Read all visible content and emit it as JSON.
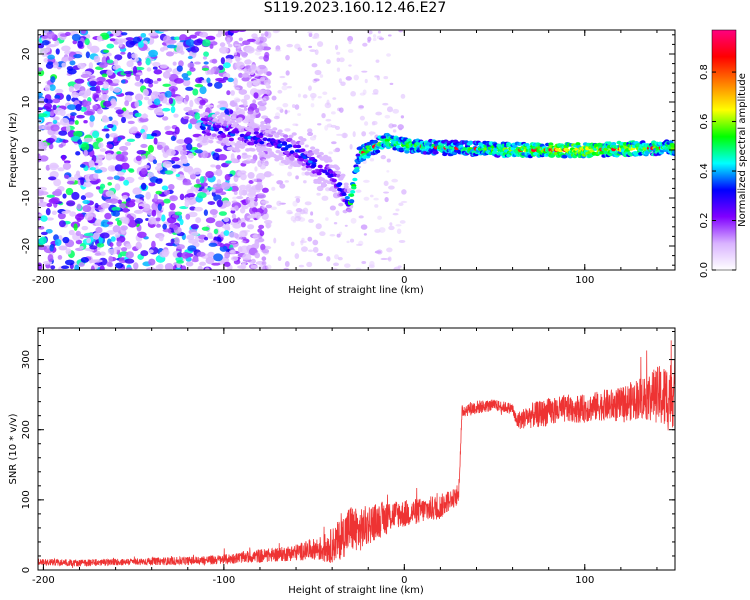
{
  "title": "S119.2023.160.12.46.E27",
  "chart_data": [
    {
      "type": "heatmap",
      "xlabel": "Height of straight line (km)",
      "ylabel": "Frequency (Hz)",
      "xlim": [
        -203,
        150
      ],
      "ylim": [
        -25,
        25
      ],
      "xticks": [
        -200,
        -100,
        0,
        100
      ],
      "yticks": [
        -20,
        -10,
        0,
        10,
        20
      ],
      "grid": false,
      "colorbar": {
        "label": "Normalized spectral amplitude",
        "range": [
          0,
          0.97
        ],
        "ticks": [
          0.0,
          0.2,
          0.4,
          0.6,
          0.8
        ],
        "colormap": [
          "#ffffff",
          "#d9b3ff",
          "#8000ff",
          "#0000ff",
          "#00ffff",
          "#00ff00",
          "#ffff00",
          "#ff8000",
          "#ff0000",
          "#ff0080"
        ]
      },
      "ridge": {
        "description_points_x": [
          -110,
          -90,
          -75,
          -60,
          -50,
          -40,
          -35,
          -30,
          -25,
          -10,
          0,
          20,
          60,
          100,
          150
        ],
        "description_points_y": [
          5,
          3,
          2,
          0,
          -3,
          -5,
          -8,
          -11,
          -1,
          2,
          1,
          0.5,
          0,
          0,
          0.5
        ],
        "flat_amplitude": [
          0.5,
          0.45,
          0.55,
          0.6,
          0.5
        ],
        "flat_x": [
          0,
          30,
          60,
          100,
          150
        ]
      },
      "noise_region": {
        "x_from": -203,
        "x_to": -95,
        "y_from": -25,
        "y_to": 25
      }
    },
    {
      "type": "line",
      "xlabel": "Height of straight line (km)",
      "ylabel": "SNR (10 * v/v)",
      "xlim": [
        -203,
        150
      ],
      "ylim": [
        0,
        345
      ],
      "xticks": [
        -200,
        -100,
        0,
        100
      ],
      "yticks": [
        0,
        100,
        200,
        300
      ],
      "grid": false,
      "series": [
        {
          "color": "#ee3333",
          "x": [
            -203,
            -180,
            -150,
            -120,
            -100,
            -90,
            -80,
            -70,
            -60,
            -50,
            -45,
            -40,
            -35,
            -30,
            -25,
            -20,
            -15,
            -10,
            -5,
            0,
            10,
            20,
            25,
            30,
            32,
            33,
            40,
            50,
            60,
            62,
            70,
            80,
            90,
            100,
            110,
            120,
            130,
            140,
            145,
            150
          ],
          "y": [
            12,
            10,
            12,
            13,
            15,
            18,
            20,
            22,
            25,
            30,
            30,
            35,
            45,
            60,
            55,
            65,
            70,
            75,
            80,
            80,
            85,
            90,
            100,
            105,
            225,
            228,
            232,
            235,
            230,
            212,
            220,
            225,
            230,
            230,
            235,
            235,
            245,
            250,
            245,
            255
          ],
          "noise_amplitude": [
            5,
            5,
            5,
            6,
            7,
            8,
            10,
            10,
            12,
            15,
            20,
            25,
            30,
            35,
            30,
            30,
            25,
            25,
            20,
            20,
            18,
            18,
            15,
            12,
            10,
            10,
            10,
            8,
            8,
            12,
            18,
            20,
            20,
            20,
            22,
            25,
            30,
            40,
            50,
            50
          ]
        }
      ]
    }
  ]
}
